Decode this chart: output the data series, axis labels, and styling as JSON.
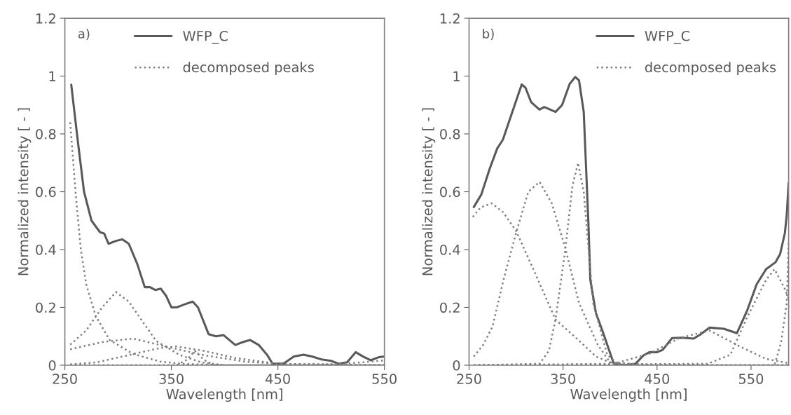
{
  "chart_data": [
    {
      "type": "line",
      "annotations": [
        "a)"
      ],
      "xlabel": "Wavelength [nm]",
      "ylabel": "Normalized intensity [ - ]",
      "xlim": [
        250,
        550
      ],
      "xticks": [
        250,
        350,
        450,
        550
      ],
      "ylim": [
        0,
        1.2
      ],
      "yticks": [
        0,
        0.2,
        0.4,
        0.6,
        0.8,
        1,
        1.2
      ],
      "grid": false,
      "legend": "top",
      "marker": "none",
      "series": [
        {
          "name": "WFP_C",
          "color": "#595959",
          "line_style": "solid",
          "x": [
            256,
            262,
            268,
            275,
            283,
            287,
            291,
            298,
            304,
            310,
            318,
            325,
            330,
            335,
            340,
            345,
            350,
            355,
            362,
            370,
            375,
            385,
            392,
            399,
            410,
            417,
            424,
            432,
            440,
            445,
            455,
            465,
            474,
            482,
            491,
            500,
            507,
            515,
            523,
            530,
            537,
            545,
            550
          ],
          "values": [
            0.97,
            0.78,
            0.6,
            0.5,
            0.46,
            0.455,
            0.42,
            0.43,
            0.435,
            0.42,
            0.35,
            0.27,
            0.27,
            0.26,
            0.265,
            0.24,
            0.2,
            0.2,
            0.21,
            0.22,
            0.2,
            0.107,
            0.1,
            0.104,
            0.07,
            0.08,
            0.087,
            0.07,
            0.035,
            0.005,
            0.005,
            0.03,
            0.036,
            0.03,
            0.02,
            0.015,
            0.005,
            0.01,
            0.045,
            0.03,
            0.017,
            0.028,
            0.03
          ]
        },
        {
          "name": "decomposed peaks",
          "color": "#7f7f7f",
          "line_style": "dotted",
          "x": [
            255,
            260,
            265,
            270,
            279,
            292,
            314,
            340,
            360,
            400,
            550
          ],
          "values": [
            0.84,
            0.6,
            0.4,
            0.28,
            0.17,
            0.087,
            0.039,
            0.012,
            0.005,
            0.0,
            0.0
          ]
        },
        {
          "color": "#7f7f7f",
          "line_style": "dotted",
          "x": [
            255,
            270,
            285,
            298,
            310,
            325,
            336,
            358,
            378,
            400,
            550
          ],
          "values": [
            0.071,
            0.12,
            0.2,
            0.253,
            0.22,
            0.14,
            0.083,
            0.035,
            0.01,
            0.0,
            0.0
          ]
        },
        {
          "color": "#7f7f7f",
          "line_style": "dotted",
          "x": [
            255,
            285,
            314,
            347,
            380,
            420,
            450,
            550
          ],
          "values": [
            0.055,
            0.08,
            0.092,
            0.063,
            0.035,
            0.012,
            0.005,
            0.0
          ]
        },
        {
          "color": "#7f7f7f",
          "line_style": "dotted",
          "x": [
            255,
            280,
            310,
            340,
            355,
            380,
            410,
            450,
            550
          ],
          "values": [
            0.003,
            0.01,
            0.035,
            0.06,
            0.065,
            0.05,
            0.025,
            0.005,
            0.0
          ]
        },
        {
          "color": "#7f7f7f",
          "line_style": "dotted",
          "x": [
            255,
            355,
            365,
            372,
            380,
            390,
            550
          ],
          "values": [
            0.0,
            0.0,
            0.02,
            0.05,
            0.02,
            0.0,
            0.0
          ]
        },
        {
          "color": "#7f7f7f",
          "line_style": "dotted",
          "x": [
            255,
            480,
            510,
            530,
            550
          ],
          "values": [
            0.0,
            0.0,
            0.005,
            0.01,
            0.017
          ]
        }
      ]
    },
    {
      "type": "line",
      "annotations": [
        "b)"
      ],
      "xlabel": "Wavelength [nm]",
      "ylabel": "Normalized intensity [ - ]",
      "xlim": [
        250,
        590
      ],
      "xticks": [
        250,
        350,
        450,
        550
      ],
      "ylim": [
        0,
        1.2
      ],
      "yticks": [
        0,
        0.2,
        0.4,
        0.6,
        0.8,
        1,
        1.2
      ],
      "grid": false,
      "legend": "top right",
      "marker": "none",
      "series": [
        {
          "name": "WFP_C",
          "color": "#595959",
          "line_style": "solid",
          "x": [
            255,
            263,
            272,
            280,
            286,
            296,
            306,
            310,
            316,
            325,
            330,
            342,
            349,
            357,
            363,
            367,
            372,
            377,
            379,
            385,
            392,
            404,
            415,
            427,
            436,
            442,
            450,
            456,
            466,
            476,
            489,
            496,
            506,
            521,
            535,
            546,
            556,
            566,
            576,
            581,
            586,
            588,
            590
          ],
          "values": [
            0.547,
            0.59,
            0.68,
            0.75,
            0.78,
            0.876,
            0.971,
            0.96,
            0.91,
            0.884,
            0.893,
            0.876,
            0.9,
            0.973,
            0.997,
            0.985,
            0.876,
            0.49,
            0.295,
            0.18,
            0.118,
            0.005,
            0.0,
            0.005,
            0.035,
            0.045,
            0.045,
            0.053,
            0.094,
            0.095,
            0.092,
            0.106,
            0.13,
            0.126,
            0.111,
            0.19,
            0.28,
            0.332,
            0.356,
            0.385,
            0.457,
            0.52,
            0.63
          ]
        },
        {
          "name": "decomposed peaks",
          "color": "#7f7f7f",
          "line_style": "dotted",
          "x": [
            254,
            262,
            274,
            286,
            300,
            320,
            342,
            367,
            385,
            400,
            450,
            590
          ],
          "values": [
            0.513,
            0.545,
            0.56,
            0.53,
            0.465,
            0.32,
            0.158,
            0.085,
            0.03,
            0.01,
            0.0,
            0.0
          ]
        },
        {
          "color": "#7f7f7f",
          "line_style": "dotted",
          "x": [
            255,
            265,
            275,
            287,
            300,
            313,
            325,
            338,
            352,
            367,
            387,
            400,
            420,
            590
          ],
          "values": [
            0.03,
            0.07,
            0.134,
            0.3,
            0.457,
            0.6,
            0.634,
            0.56,
            0.41,
            0.215,
            0.07,
            0.01,
            0.0,
            0.0
          ]
        },
        {
          "color": "#7f7f7f",
          "line_style": "dotted",
          "x": [
            255,
            325,
            335,
            342,
            352,
            360,
            366,
            372,
            382,
            397,
            410,
            590
          ],
          "values": [
            0.0,
            0.005,
            0.05,
            0.158,
            0.39,
            0.62,
            0.7,
            0.6,
            0.215,
            0.036,
            0.0,
            0.0
          ]
        },
        {
          "color": "#7f7f7f",
          "line_style": "dotted",
          "x": [
            255,
            404,
            442,
            474,
            506,
            541,
            566,
            590
          ],
          "values": [
            0.0,
            0.005,
            0.04,
            0.094,
            0.12,
            0.06,
            0.022,
            0.007
          ]
        },
        {
          "color": "#7f7f7f",
          "line_style": "dotted",
          "x": [
            255,
            504,
            528,
            546,
            566,
            575,
            586,
            590
          ],
          "values": [
            0.0,
            0.005,
            0.036,
            0.167,
            0.295,
            0.332,
            0.264,
            0.23
          ]
        },
        {
          "color": "#7f7f7f",
          "line_style": "dotted",
          "x": [
            255,
            575,
            582,
            588,
            590
          ],
          "values": [
            0.0,
            0.0,
            0.08,
            0.215,
            0.43
          ]
        }
      ]
    }
  ]
}
